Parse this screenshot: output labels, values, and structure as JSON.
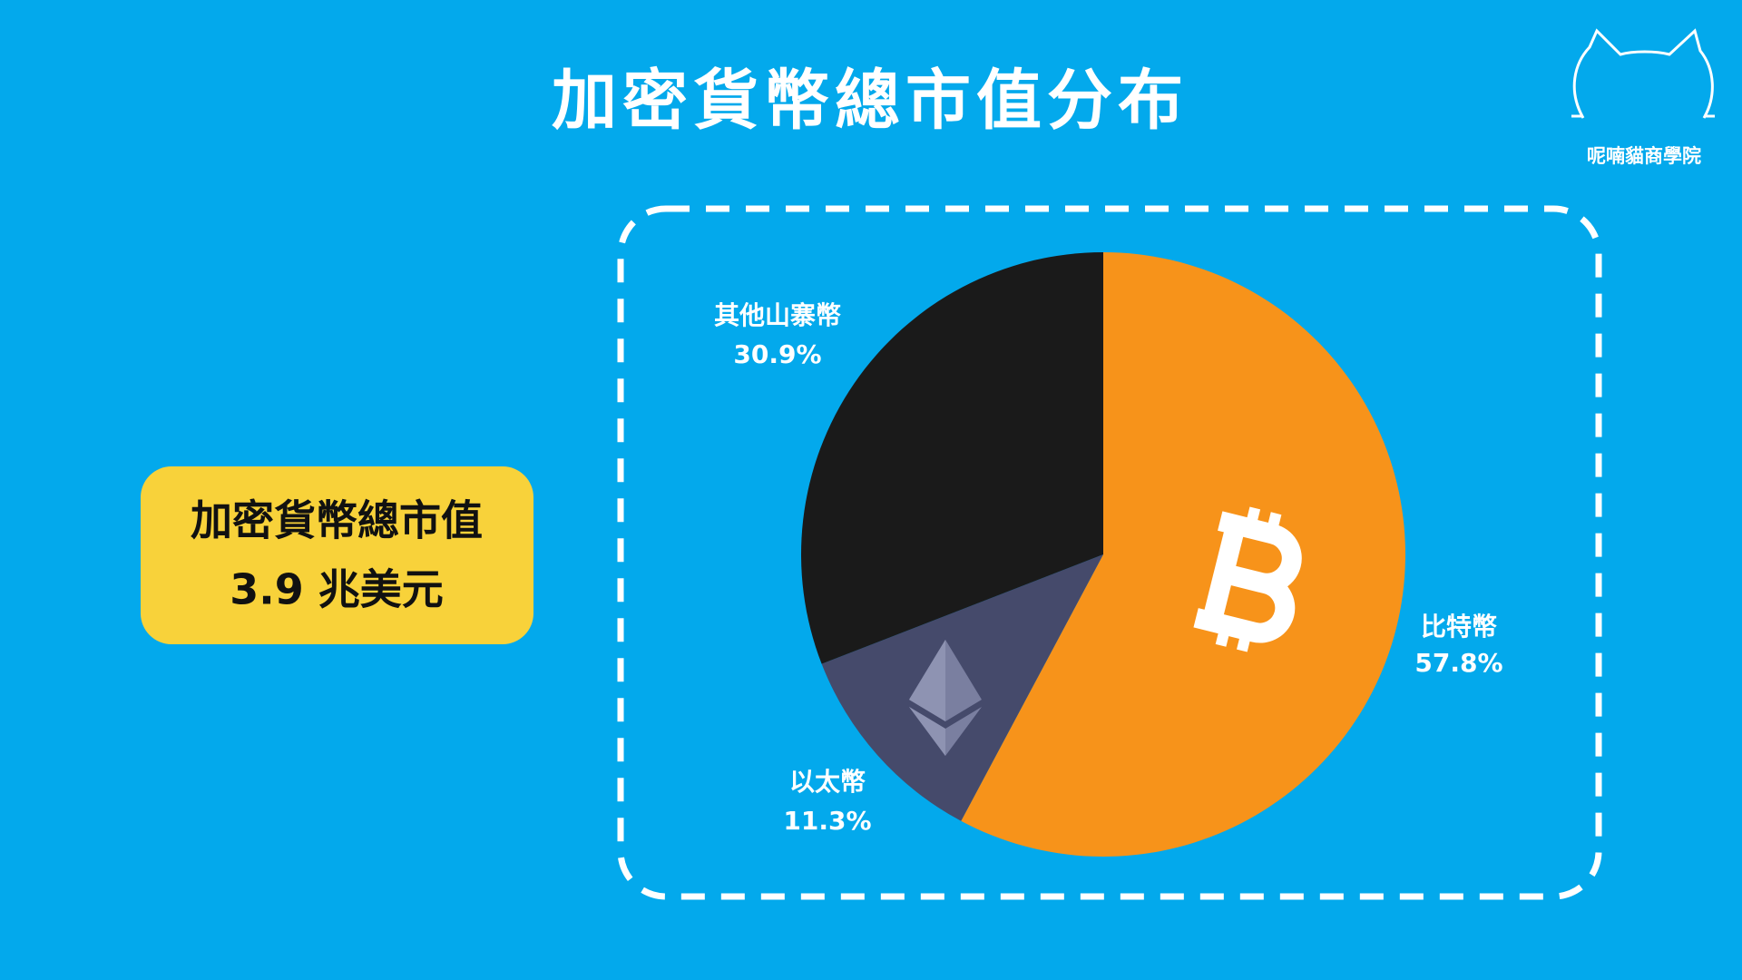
{
  "chart_data": {
    "type": "pie",
    "title": "加密貨幣總市值分布",
    "categories": [
      "比特幣",
      "以太幣",
      "其他山寨幣"
    ],
    "values": [
      57.8,
      11.3,
      30.9
    ],
    "value_labels": [
      "57.8%",
      "11.3%",
      "30.9%"
    ],
    "colors": [
      "#f7931a",
      "#454a6b",
      "#1a1a1a"
    ],
    "annotations": [
      "加密貨幣總市值",
      "3.9 兆美元"
    ]
  },
  "brand": "呢喃貓商學院"
}
